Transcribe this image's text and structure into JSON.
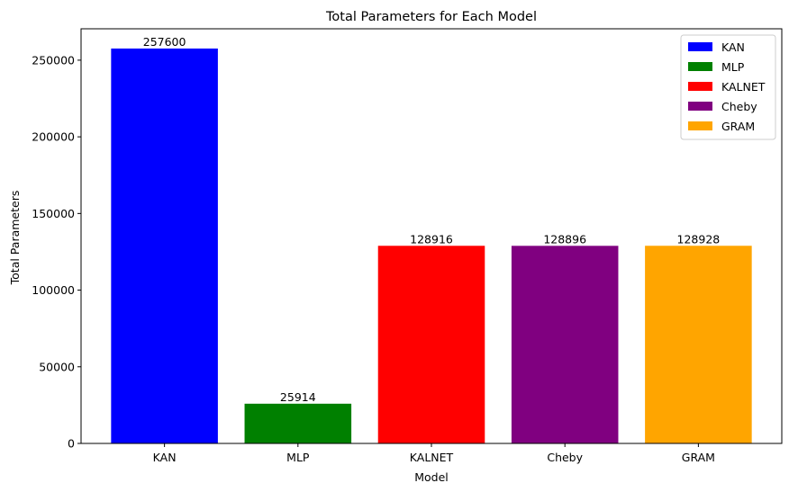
{
  "chart_data": {
    "type": "bar",
    "title": "Total Parameters for Each Model",
    "xlabel": "Model",
    "ylabel": "Total Parameters",
    "categories": [
      "KAN",
      "MLP",
      "KALNET",
      "Cheby",
      "GRAM"
    ],
    "values": [
      257600,
      25914,
      128916,
      128896,
      128928
    ],
    "value_labels": [
      "257600",
      "25914",
      "128916",
      "128896",
      "128928"
    ],
    "colors": [
      "#0000ff",
      "#008000",
      "#ff0000",
      "#800080",
      "#ffa500"
    ],
    "ylim": [
      0,
      270480
    ],
    "yticks": [
      0,
      50000,
      100000,
      150000,
      200000,
      250000
    ],
    "ytick_labels": [
      "0",
      "50000",
      "100000",
      "150000",
      "200000",
      "250000"
    ],
    "legend": {
      "placement": "top-right",
      "entries": [
        "KAN",
        "MLP",
        "KALNET",
        "Cheby",
        "GRAM"
      ]
    },
    "grid": false
  }
}
